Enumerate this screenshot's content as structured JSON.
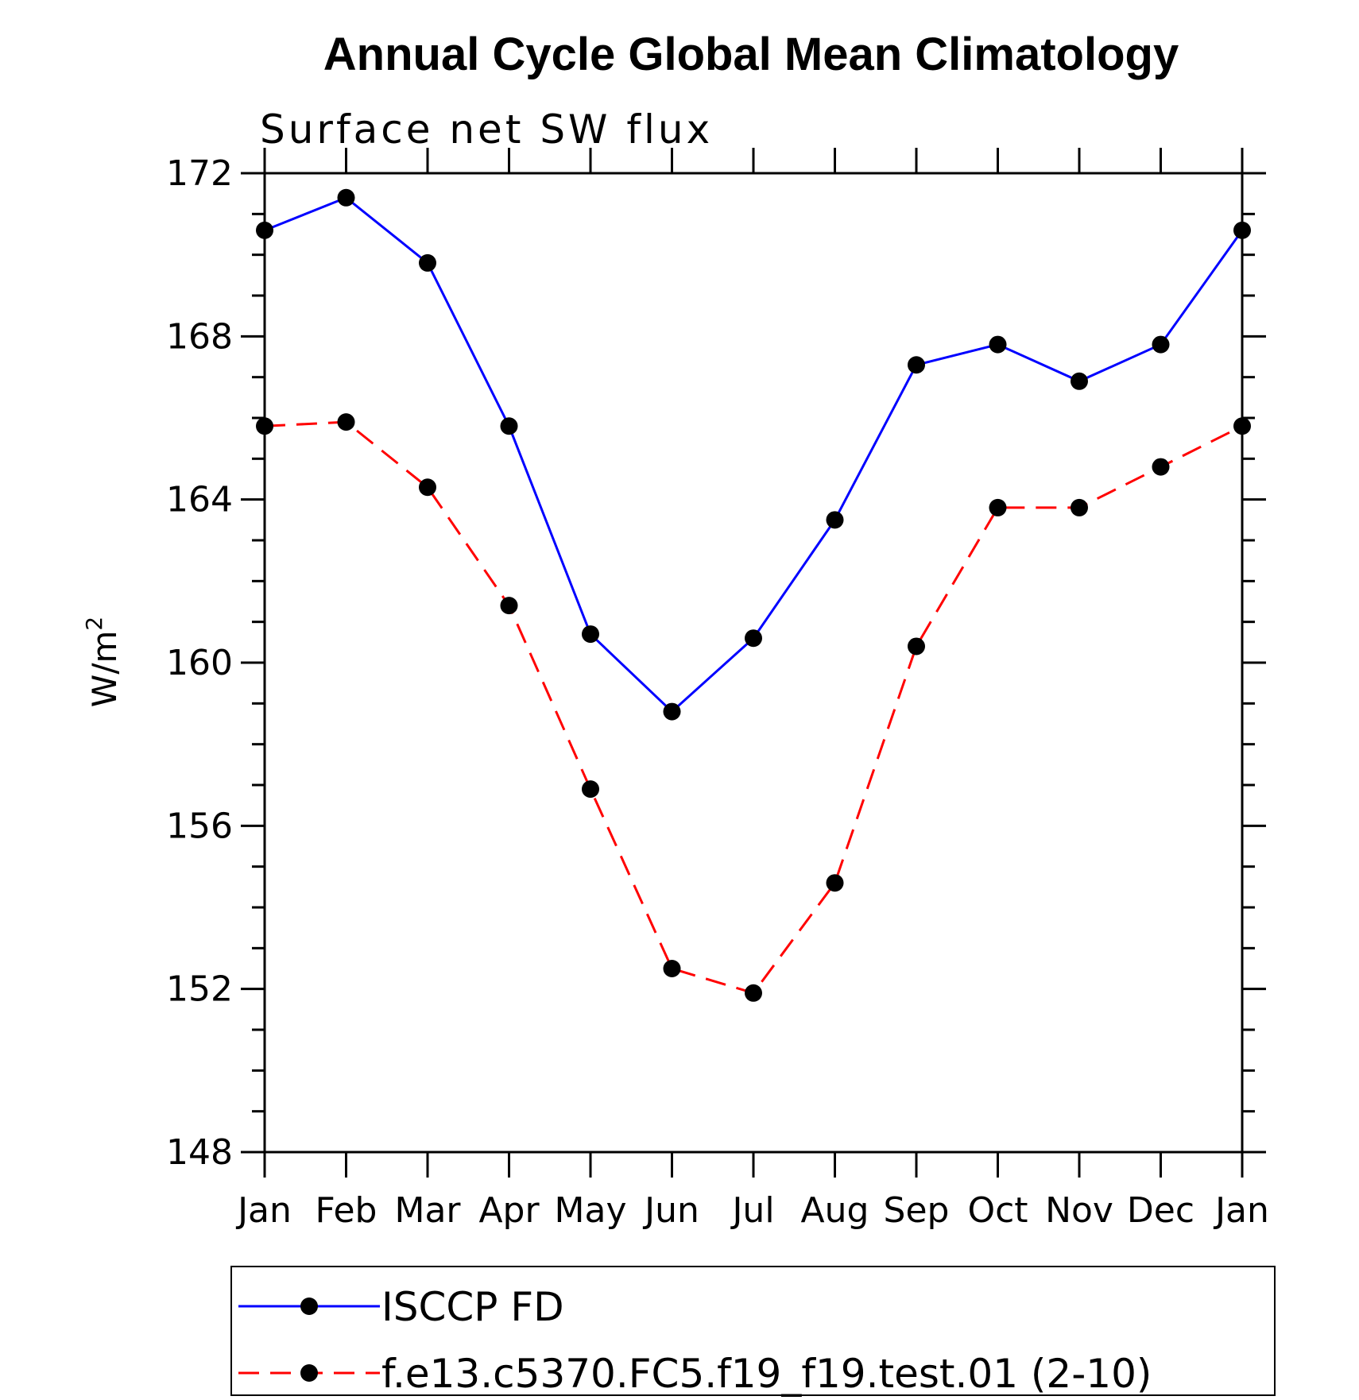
{
  "chart_data": {
    "type": "line",
    "title": "Annual Cycle Global Mean Climatology",
    "subtitle": "Surface net SW flux",
    "ylabel": "W/m",
    "ylabel_sup": "2",
    "xlabel": "",
    "categories": [
      "Jan",
      "Feb",
      "Mar",
      "Apr",
      "May",
      "Jun",
      "Jul",
      "Aug",
      "Sep",
      "Oct",
      "Nov",
      "Dec",
      "Jan"
    ],
    "ylim": [
      148,
      172
    ],
    "yticks": [
      148,
      152,
      156,
      160,
      164,
      168,
      172
    ],
    "grid": false,
    "legend_position": "bottom",
    "series": [
      {
        "name": "ISCCP FD",
        "color": "#0000ff",
        "dash": "solid",
        "marker": "filled-circle",
        "values": [
          170.6,
          171.4,
          169.8,
          165.8,
          160.7,
          158.8,
          160.6,
          163.5,
          167.3,
          167.8,
          166.9,
          167.8,
          170.6
        ]
      },
      {
        "name": "f.e13.c5370.FC5.f19_f19.test.01 (2-10)",
        "color": "#ff0000",
        "dash": "dashed",
        "marker": "filled-circle",
        "values": [
          165.8,
          165.9,
          164.3,
          161.4,
          156.9,
          152.5,
          151.9,
          154.6,
          160.4,
          163.8,
          163.8,
          164.8,
          165.8
        ]
      }
    ]
  }
}
